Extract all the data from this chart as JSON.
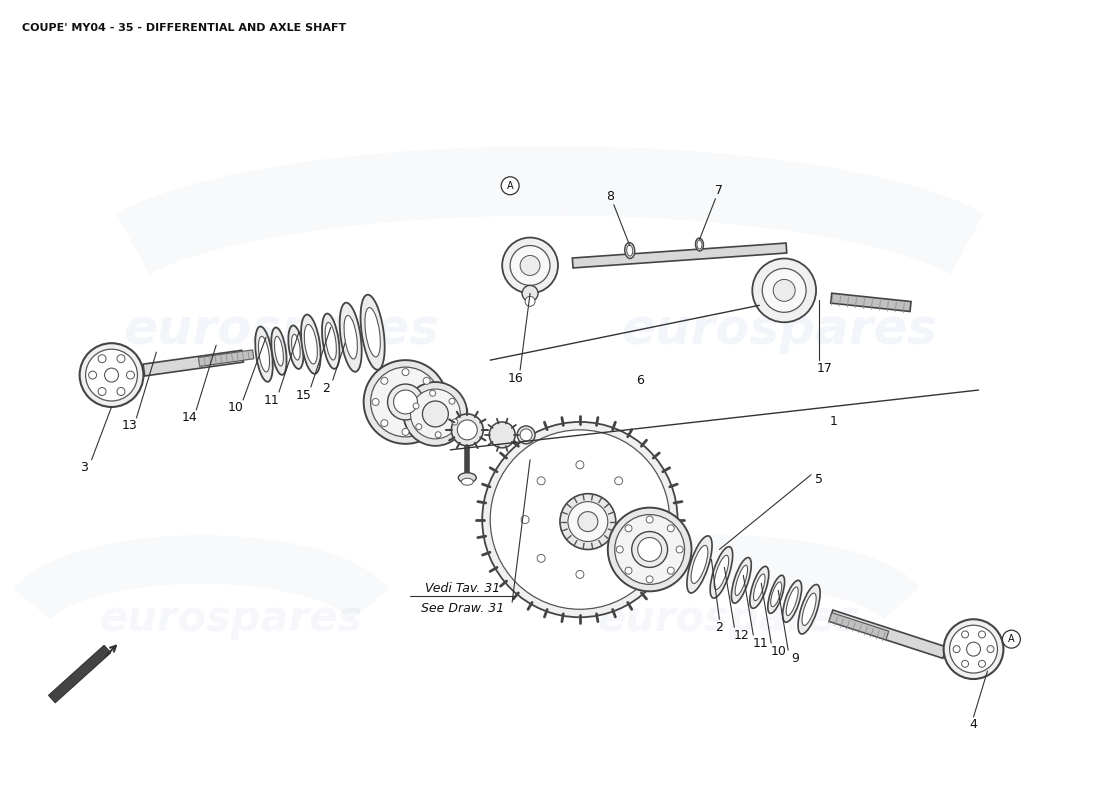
{
  "title": "COUPE' MY04 - 35 - DIFFERENTIAL AND AXLE SHAFT",
  "title_fontsize": 8,
  "bg_color": "#ffffff",
  "watermark_text": "eurospares",
  "annotation_text_1": "Vedi Tav. 31",
  "annotation_text_2": "See Draw. 31",
  "line_color": "#333333",
  "part_color": "#111111"
}
